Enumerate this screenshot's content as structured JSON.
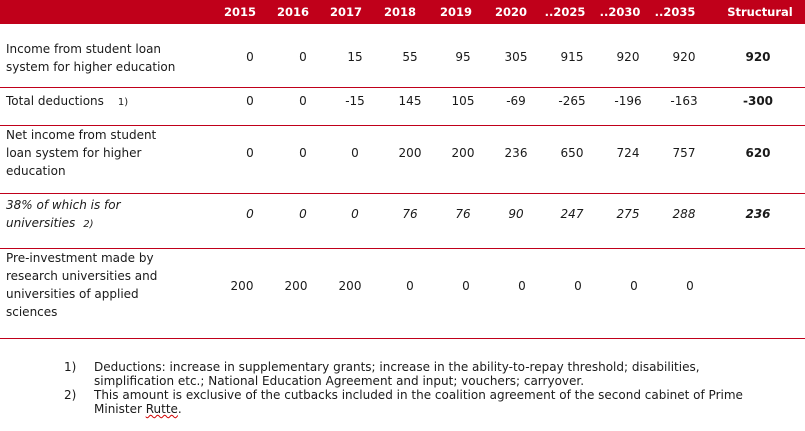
{
  "headers": [
    "2015",
    "2016",
    "2017",
    "2018",
    "2019",
    "2020",
    "..2025",
    "..2030",
    "..2035",
    "Structural"
  ],
  "rows": [
    {
      "label": "Income from student loan system for higher education",
      "label_lines": [
        "Income from student loan",
        "system for higher education"
      ],
      "note": "",
      "values": [
        "0",
        "0",
        "15",
        "55",
        "95",
        "305",
        "915",
        "920",
        "920",
        "920"
      ]
    },
    {
      "label": "Total deductions",
      "label_lines": [
        "Total deductions"
      ],
      "note": "1)",
      "values": [
        "0",
        "0",
        "-15",
        "145",
        "105",
        "-69",
        "-265",
        "-196",
        "-163",
        "-300"
      ]
    },
    {
      "label": "Net income from student loan system for higher education",
      "label_lines": [
        "Net income from student",
        "loan system for higher",
        "education"
      ],
      "note": "",
      "values": [
        "0",
        "0",
        "0",
        "200",
        "200",
        "236",
        "650",
        "724",
        "757",
        "620"
      ]
    },
    {
      "label": "38% of which is for universities",
      "label_lines": [
        "38% of which is for",
        "universities"
      ],
      "note": "2)",
      "values": [
        "0",
        "0",
        "0",
        "76",
        "76",
        "90",
        "247",
        "275",
        "288",
        "236"
      ]
    },
    {
      "label": "Pre-investment made by research universities and universities of applied sciences",
      "label_lines": [
        "Pre-investment made by",
        "research universities and",
        "universities of applied",
        "sciences"
      ],
      "note": "",
      "values": [
        "200",
        "200",
        "200",
        "0",
        "0",
        "0",
        "0",
        "0",
        "0",
        ""
      ]
    }
  ],
  "footnotes": [
    {
      "number": "1)",
      "text": "Deductions: increase in supplementary grants; increase in the ability-to-repay threshold; disabilities, simplification etc.; National Education Agreement and input; vouchers; carryover."
    },
    {
      "number": "2)",
      "text_main": "This amount is exclusive of the cutbacks included in the coalition agreement of the second cabinet of Prime Minister ",
      "text_underlined": "Rutte",
      "text_end": "."
    }
  ]
}
